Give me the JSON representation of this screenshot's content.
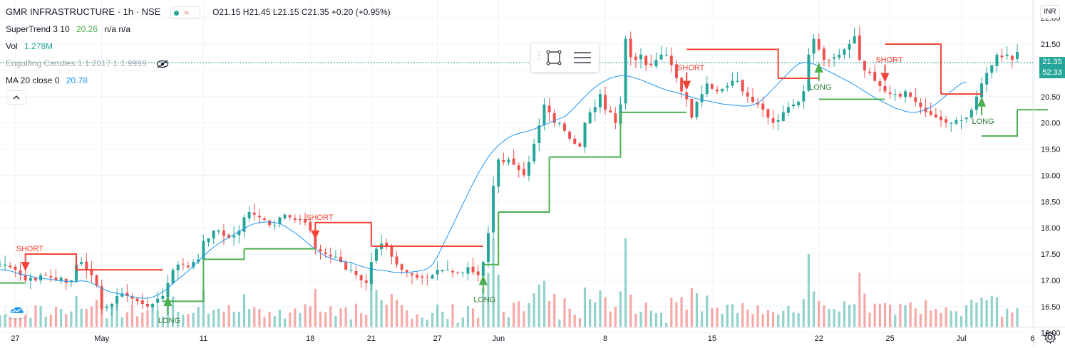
{
  "legend": {
    "symbol": "GMR INFRASTRUCTURE · 1h · NSE",
    "ohlc": "O21.15  H21.45  L21.15  C21.35  +0.20 (+0.95%)",
    "supertrend_label": "SuperTrend 3 10",
    "supertrend_value": "20.26",
    "supertrend_na": "n/a  n/a",
    "vol_label": "Vol",
    "vol_value": "1.278M",
    "engulfing_label": "Engulfing Candles 1 1 2017 1 1 9999",
    "ma_label": "MA 20 close 0",
    "ma_value": "20.78"
  },
  "currency": "INR",
  "price_badge": "21.35",
  "countdown_badge": "52:33",
  "icons": [
    "eye-slash-icon",
    "collapse-chevron-icon",
    "rectangle-tool-icon",
    "settings-lines-icon",
    "tradingview-logo-icon",
    "gear-icon"
  ],
  "colors": {
    "up": "#26a69a",
    "down": "#ef5350",
    "ma": "#2196f3",
    "supertrend_up": "#4caf50",
    "supertrend_down": "#f44336"
  },
  "chart_data": {
    "type": "candlestick",
    "title": "GMR INFRASTRUCTURE · 1h · NSE",
    "y_ticks": [
      "16.00",
      "16.50",
      "17.00",
      "17.50",
      "18.00",
      "18.50",
      "19.00",
      "19.50",
      "20.00",
      "20.50",
      "21.00",
      "21.50",
      "22.00"
    ],
    "ylim": [
      15.9,
      22.3
    ],
    "x_ticks": [
      {
        "label": "27",
        "i": 3
      },
      {
        "label": "May",
        "i": 20
      },
      {
        "label": "11",
        "i": 40
      },
      {
        "label": "18",
        "i": 61
      },
      {
        "label": "21",
        "i": 73
      },
      {
        "label": "27",
        "i": 86
      },
      {
        "label": "Jun",
        "i": 98
      },
      {
        "label": "8",
        "i": 119
      },
      {
        "label": "15",
        "i": 140
      },
      {
        "label": "22",
        "i": 161
      },
      {
        "label": "25",
        "i": 175
      },
      {
        "label": "Jul",
        "i": 189
      },
      {
        "label": "6",
        "i": 203
      }
    ],
    "close": [
      17.3,
      17.3,
      17.25,
      17.2,
      17.1,
      17.0,
      17.05,
      17.0,
      17.1,
      17.1,
      17.05,
      17.0,
      17.05,
      16.95,
      17.0,
      17.3,
      17.35,
      17.2,
      17.1,
      16.9,
      16.45,
      16.5,
      16.55,
      16.7,
      16.75,
      16.7,
      16.65,
      16.6,
      16.55,
      16.5,
      16.55,
      16.65,
      16.7,
      16.95,
      17.2,
      17.3,
      17.3,
      17.25,
      17.35,
      17.4,
      17.75,
      17.8,
      17.95,
      17.95,
      17.85,
      17.8,
      17.85,
      17.95,
      18.2,
      18.3,
      18.25,
      18.2,
      18.15,
      18.05,
      18.05,
      18.2,
      18.25,
      18.2,
      18.15,
      18.15,
      18.1,
      17.95,
      17.6,
      17.55,
      17.5,
      17.45,
      17.45,
      17.35,
      17.2,
      17.2,
      17.1,
      17.0,
      16.95,
      17.35,
      17.6,
      17.7,
      17.65,
      17.45,
      17.3,
      17.2,
      17.15,
      17.1,
      17.05,
      17.05,
      17.05,
      17.1,
      17.2,
      17.2,
      17.2,
      17.15,
      17.15,
      17.15,
      17.25,
      17.15,
      17.1,
      17.35,
      17.9,
      18.8,
      19.3,
      19.25,
      19.3,
      19.2,
      19.1,
      19.0,
      19.25,
      19.6,
      19.95,
      20.35,
      20.2,
      20.0,
      20.0,
      19.85,
      19.7,
      19.6,
      19.55,
      20.0,
      20.2,
      20.3,
      20.55,
      20.25,
      20.2,
      20.0,
      20.35,
      21.6,
      21.25,
      21.2,
      21.3,
      21.1,
      21.1,
      21.2,
      21.3,
      21.3,
      21.1,
      20.85,
      20.6,
      20.45,
      20.1,
      20.4,
      20.55,
      20.75,
      20.65,
      20.6,
      20.65,
      20.7,
      20.8,
      20.8,
      20.6,
      20.5,
      20.4,
      20.35,
      20.25,
      20.1,
      20.0,
      20.05,
      20.2,
      20.3,
      20.35,
      20.4,
      20.6,
      21.3,
      21.6,
      21.4,
      21.2,
      21.2,
      21.25,
      21.3,
      21.4,
      21.5,
      21.65,
      21.2,
      21.0,
      20.95,
      20.8,
      20.7,
      20.6,
      20.55,
      20.55,
      20.5,
      20.6,
      20.5,
      20.4,
      20.3,
      20.2,
      20.15,
      20.1,
      20.05,
      20.0,
      20.0,
      20.05,
      20.05,
      20.1,
      20.25,
      20.5,
      20.75,
      20.95,
      21.1,
      21.3,
      21.25,
      21.3,
      21.2,
      21.35
    ],
    "ma20": [
      17.2,
      17.2,
      17.18,
      17.15,
      17.12,
      17.1,
      17.08,
      17.05,
      17.04,
      17.03,
      17.02,
      17.0,
      16.99,
      16.98,
      16.97,
      16.98,
      16.99,
      16.98,
      16.95,
      16.9,
      16.85,
      16.8,
      16.77,
      16.75,
      16.73,
      16.71,
      16.69,
      16.67,
      16.66,
      16.66,
      16.68,
      16.72,
      16.78,
      16.85,
      16.94,
      17.02,
      17.1,
      17.18,
      17.27,
      17.36,
      17.46,
      17.55,
      17.63,
      17.7,
      17.76,
      17.82,
      17.87,
      17.93,
      17.99,
      18.04,
      18.08,
      18.1,
      18.11,
      18.11,
      18.1,
      18.08,
      18.03,
      17.97,
      17.9,
      17.83,
      17.75,
      17.67,
      17.59,
      17.52,
      17.46,
      17.42,
      17.39,
      17.37,
      17.35,
      17.34,
      17.3,
      17.27,
      17.24,
      17.22,
      17.2,
      17.19,
      17.18,
      17.16,
      17.15,
      17.15,
      17.15,
      17.16,
      17.17,
      17.19,
      17.22,
      17.3,
      17.45,
      17.65,
      17.85,
      18.05,
      18.25,
      18.45,
      18.65,
      18.85,
      19.03,
      19.2,
      19.35,
      19.47,
      19.57,
      19.65,
      19.72,
      19.77,
      19.8,
      19.82,
      19.85,
      19.88,
      19.92,
      19.96,
      20.0,
      20.04,
      20.08,
      20.12,
      20.2,
      20.3,
      20.4,
      20.5,
      20.6,
      20.68,
      20.75,
      20.8,
      20.85,
      20.88,
      20.9,
      20.9,
      20.88,
      20.85,
      20.82,
      20.78,
      20.74,
      20.7,
      20.66,
      20.63,
      20.6,
      20.58,
      20.55,
      20.52,
      20.49,
      20.46,
      20.44,
      20.42,
      20.4,
      20.38,
      20.36,
      20.35,
      20.34,
      20.33,
      20.32,
      20.32,
      20.34,
      20.38,
      20.45,
      20.55,
      20.65,
      20.75,
      20.85,
      20.95,
      21.05,
      21.12,
      21.15,
      21.15,
      21.12,
      21.08,
      21.03,
      20.98,
      20.93,
      20.88,
      20.83,
      20.78,
      20.72,
      20.66,
      20.6,
      20.54,
      20.48,
      20.43,
      20.38,
      20.33,
      20.28,
      20.25,
      20.22,
      20.2,
      20.2,
      20.22,
      20.25,
      20.3,
      20.36,
      20.44,
      20.52,
      20.6,
      20.68,
      20.75,
      20.78
    ],
    "supertrend": [
      {
        "from": 0,
        "to": 5,
        "value": 16.95,
        "dir": "up"
      },
      {
        "from": 5,
        "to": 15,
        "value": 17.5,
        "dir": "down"
      },
      {
        "from": 15,
        "to": 32,
        "value": 17.2,
        "dir": "down"
      },
      {
        "from": 32,
        "to": 40,
        "value": 16.6,
        "dir": "up"
      },
      {
        "from": 40,
        "to": 48,
        "value": 17.4,
        "dir": "up"
      },
      {
        "from": 48,
        "to": 62,
        "value": 17.6,
        "dir": "up"
      },
      {
        "from": 62,
        "to": 73,
        "value": 18.1,
        "dir": "down"
      },
      {
        "from": 73,
        "to": 95,
        "value": 17.65,
        "dir": "down"
      },
      {
        "from": 95,
        "to": 98,
        "value": 17.3,
        "dir": "up"
      },
      {
        "from": 98,
        "to": 108,
        "value": 18.3,
        "dir": "up"
      },
      {
        "from": 108,
        "to": 122,
        "value": 19.35,
        "dir": "up"
      },
      {
        "from": 122,
        "to": 135,
        "value": 20.2,
        "dir": "up"
      },
      {
        "from": 135,
        "to": 153,
        "value": 21.4,
        "dir": "down"
      },
      {
        "from": 153,
        "to": 161,
        "value": 20.85,
        "dir": "down"
      },
      {
        "from": 161,
        "to": 174,
        "value": 20.45,
        "dir": "up"
      },
      {
        "from": 174,
        "to": 185,
        "value": 21.5,
        "dir": "down"
      },
      {
        "from": 185,
        "to": 193,
        "value": 20.55,
        "dir": "down"
      },
      {
        "from": 193,
        "to": 200,
        "value": 19.75,
        "dir": "up"
      },
      {
        "from": 200,
        "to": 206,
        "value": 20.25,
        "dir": "up"
      }
    ],
    "signals": [
      {
        "i": 5,
        "type": "short",
        "text": "SHORT"
      },
      {
        "i": 33,
        "type": "long",
        "text": "LONG"
      },
      {
        "i": 62,
        "type": "short",
        "text": "SHORT"
      },
      {
        "i": 95,
        "type": "long",
        "text": "LONG"
      },
      {
        "i": 135,
        "type": "short",
        "text": "SHORT"
      },
      {
        "i": 161,
        "type": "long",
        "text": "LONG"
      },
      {
        "i": 174,
        "type": "short",
        "text": "SHORT"
      },
      {
        "i": 193,
        "type": "long",
        "text": "LONG"
      }
    ]
  }
}
